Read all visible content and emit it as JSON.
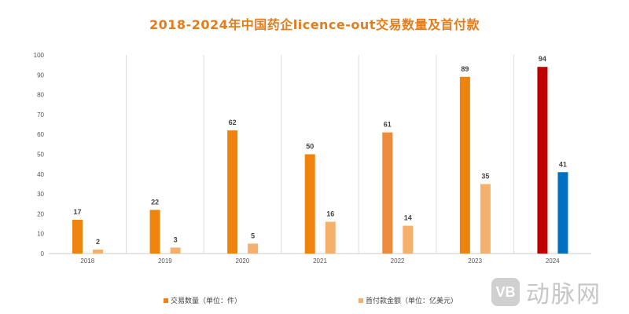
{
  "chart_data": {
    "type": "bar",
    "title": "2018-2024年中国药企licence-out交易数量及首付款",
    "categories": [
      "2018",
      "2019",
      "2020",
      "2021",
      "2022",
      "2023",
      "2024"
    ],
    "series": [
      {
        "name": "交易数量（单位：件）",
        "values": [
          17,
          22,
          62,
          50,
          61,
          89,
          94
        ],
        "color": "#EF830F",
        "point_colors": {
          "2022": "#EE8A3C",
          "2024": "#C00000"
        }
      },
      {
        "name": "首付款金额（单位：亿美元）",
        "values": [
          2,
          3,
          5,
          16,
          14,
          35,
          41
        ],
        "color": "#F5B06C",
        "point_colors": {
          "2024": "#0070C0"
        }
      }
    ],
    "yticks": [
      0,
      10,
      20,
      30,
      40,
      50,
      60,
      70,
      80,
      90,
      100
    ],
    "ylim": [
      0,
      100
    ],
    "xlabel": "",
    "ylabel": "",
    "grid": "vertical category separators",
    "legend": "bottom"
  },
  "watermark": {
    "logo": "VB",
    "text": "动脉网"
  },
  "colors": {
    "title": "#E27D1C"
  }
}
